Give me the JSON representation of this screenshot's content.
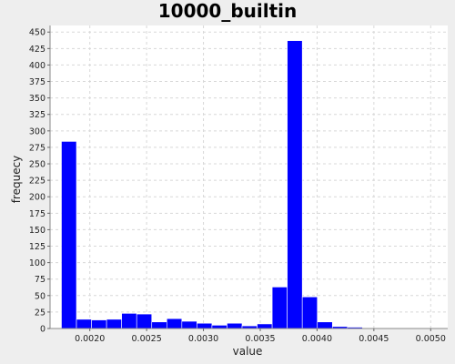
{
  "chart_data": {
    "type": "bar",
    "title": "10000_builtin",
    "xlabel": "value",
    "ylabel": "frequecy",
    "xlim": [
      0.00165,
      0.00515
    ],
    "ylim": [
      0,
      460
    ],
    "bin_width": 0.0001325,
    "x_ticks": [
      0.002,
      0.0025,
      0.003,
      0.0035,
      0.004,
      0.0045,
      0.005
    ],
    "x_tick_labels": [
      "0.0020",
      "0.0025",
      "0.0030",
      "0.0035",
      "0.0040",
      "0.0045",
      "0.0050"
    ],
    "y_ticks": [
      0,
      25,
      50,
      75,
      100,
      125,
      150,
      175,
      200,
      225,
      250,
      275,
      300,
      325,
      350,
      375,
      400,
      425,
      450
    ],
    "grid": true,
    "bar_color": "#0000ff",
    "bins": [
      {
        "x0": 0.00175,
        "value": 284
      },
      {
        "x0": 0.0018825,
        "value": 14
      },
      {
        "x0": 0.002015,
        "value": 13
      },
      {
        "x0": 0.0021475,
        "value": 14
      },
      {
        "x0": 0.00228,
        "value": 23
      },
      {
        "x0": 0.0024125,
        "value": 22
      },
      {
        "x0": 0.002545,
        "value": 10
      },
      {
        "x0": 0.0026775,
        "value": 15
      },
      {
        "x0": 0.00281,
        "value": 11
      },
      {
        "x0": 0.0029425,
        "value": 8
      },
      {
        "x0": 0.003075,
        "value": 5
      },
      {
        "x0": 0.0032075,
        "value": 8
      },
      {
        "x0": 0.00334,
        "value": 4
      },
      {
        "x0": 0.0034725,
        "value": 7
      },
      {
        "x0": 0.003605,
        "value": 63
      },
      {
        "x0": 0.0037375,
        "value": 437
      },
      {
        "x0": 0.00387,
        "value": 48
      },
      {
        "x0": 0.0040025,
        "value": 10
      },
      {
        "x0": 0.004135,
        "value": 3
      },
      {
        "x0": 0.0042675,
        "value": 2
      }
    ]
  }
}
